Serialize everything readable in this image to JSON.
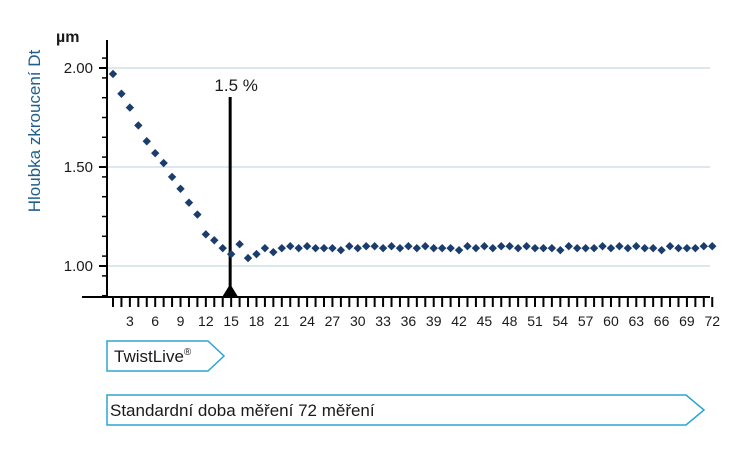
{
  "chart_data": {
    "type": "scatter",
    "unit": "µm",
    "ylabel": "Hloubka zkroucení Dt",
    "ylim": [
      0.8,
      2.1
    ],
    "yticks": [
      1.0,
      1.5,
      2.0
    ],
    "yticklabels": [
      "1.00",
      "1.50",
      "2.00"
    ],
    "xlim": [
      0,
      72
    ],
    "xticks": [
      3,
      6,
      9,
      12,
      15,
      18,
      21,
      24,
      27,
      30,
      33,
      36,
      39,
      42,
      45,
      48,
      51,
      54,
      57,
      60,
      63,
      66,
      69,
      72
    ],
    "grid": "horizontal",
    "series": [
      {
        "x": [
          1,
          2,
          3,
          4,
          5,
          6,
          7,
          8,
          9,
          10,
          11,
          12,
          13,
          14,
          15,
          16,
          17,
          18,
          19,
          20,
          21,
          22,
          23,
          24,
          25,
          26,
          27,
          28,
          29,
          30,
          31,
          32,
          33,
          34,
          35,
          36,
          37,
          38,
          39,
          40,
          41,
          42,
          43,
          44,
          45,
          46,
          47,
          48,
          49,
          50,
          51,
          52,
          53,
          54,
          55,
          56,
          57,
          58,
          59,
          60,
          61,
          62,
          63,
          64,
          65,
          66,
          67,
          68,
          69,
          70,
          71,
          72
        ],
        "y": [
          1.97,
          1.87,
          1.8,
          1.71,
          1.63,
          1.57,
          1.52,
          1.45,
          1.39,
          1.32,
          1.26,
          1.16,
          1.13,
          1.09,
          1.06,
          1.11,
          1.04,
          1.06,
          1.09,
          1.07,
          1.09,
          1.1,
          1.09,
          1.1,
          1.09,
          1.09,
          1.09,
          1.08,
          1.1,
          1.09,
          1.1,
          1.1,
          1.09,
          1.1,
          1.09,
          1.1,
          1.09,
          1.1,
          1.09,
          1.09,
          1.09,
          1.08,
          1.1,
          1.09,
          1.1,
          1.09,
          1.1,
          1.1,
          1.09,
          1.1,
          1.09,
          1.09,
          1.09,
          1.08,
          1.1,
          1.09,
          1.09,
          1.09,
          1.1,
          1.09,
          1.1,
          1.09,
          1.1,
          1.09,
          1.09,
          1.08,
          1.1,
          1.09,
          1.09,
          1.09,
          1.1,
          1.1
        ],
        "color": "#1a3d6e"
      }
    ],
    "annotations": [
      {
        "x": 15,
        "label": "1.5 %"
      }
    ]
  },
  "arrows": {
    "twistlive": {
      "label": "TwistLive",
      "superscript": "®"
    },
    "standard": {
      "label": "Standardní doba měření 72 měření"
    }
  },
  "colors": {
    "marker": "#1a3d6e",
    "grid": "#b9d0de",
    "arrow_border": "#2aa6d6",
    "ylabel": "#1f5f8b",
    "axis": "#000000"
  }
}
